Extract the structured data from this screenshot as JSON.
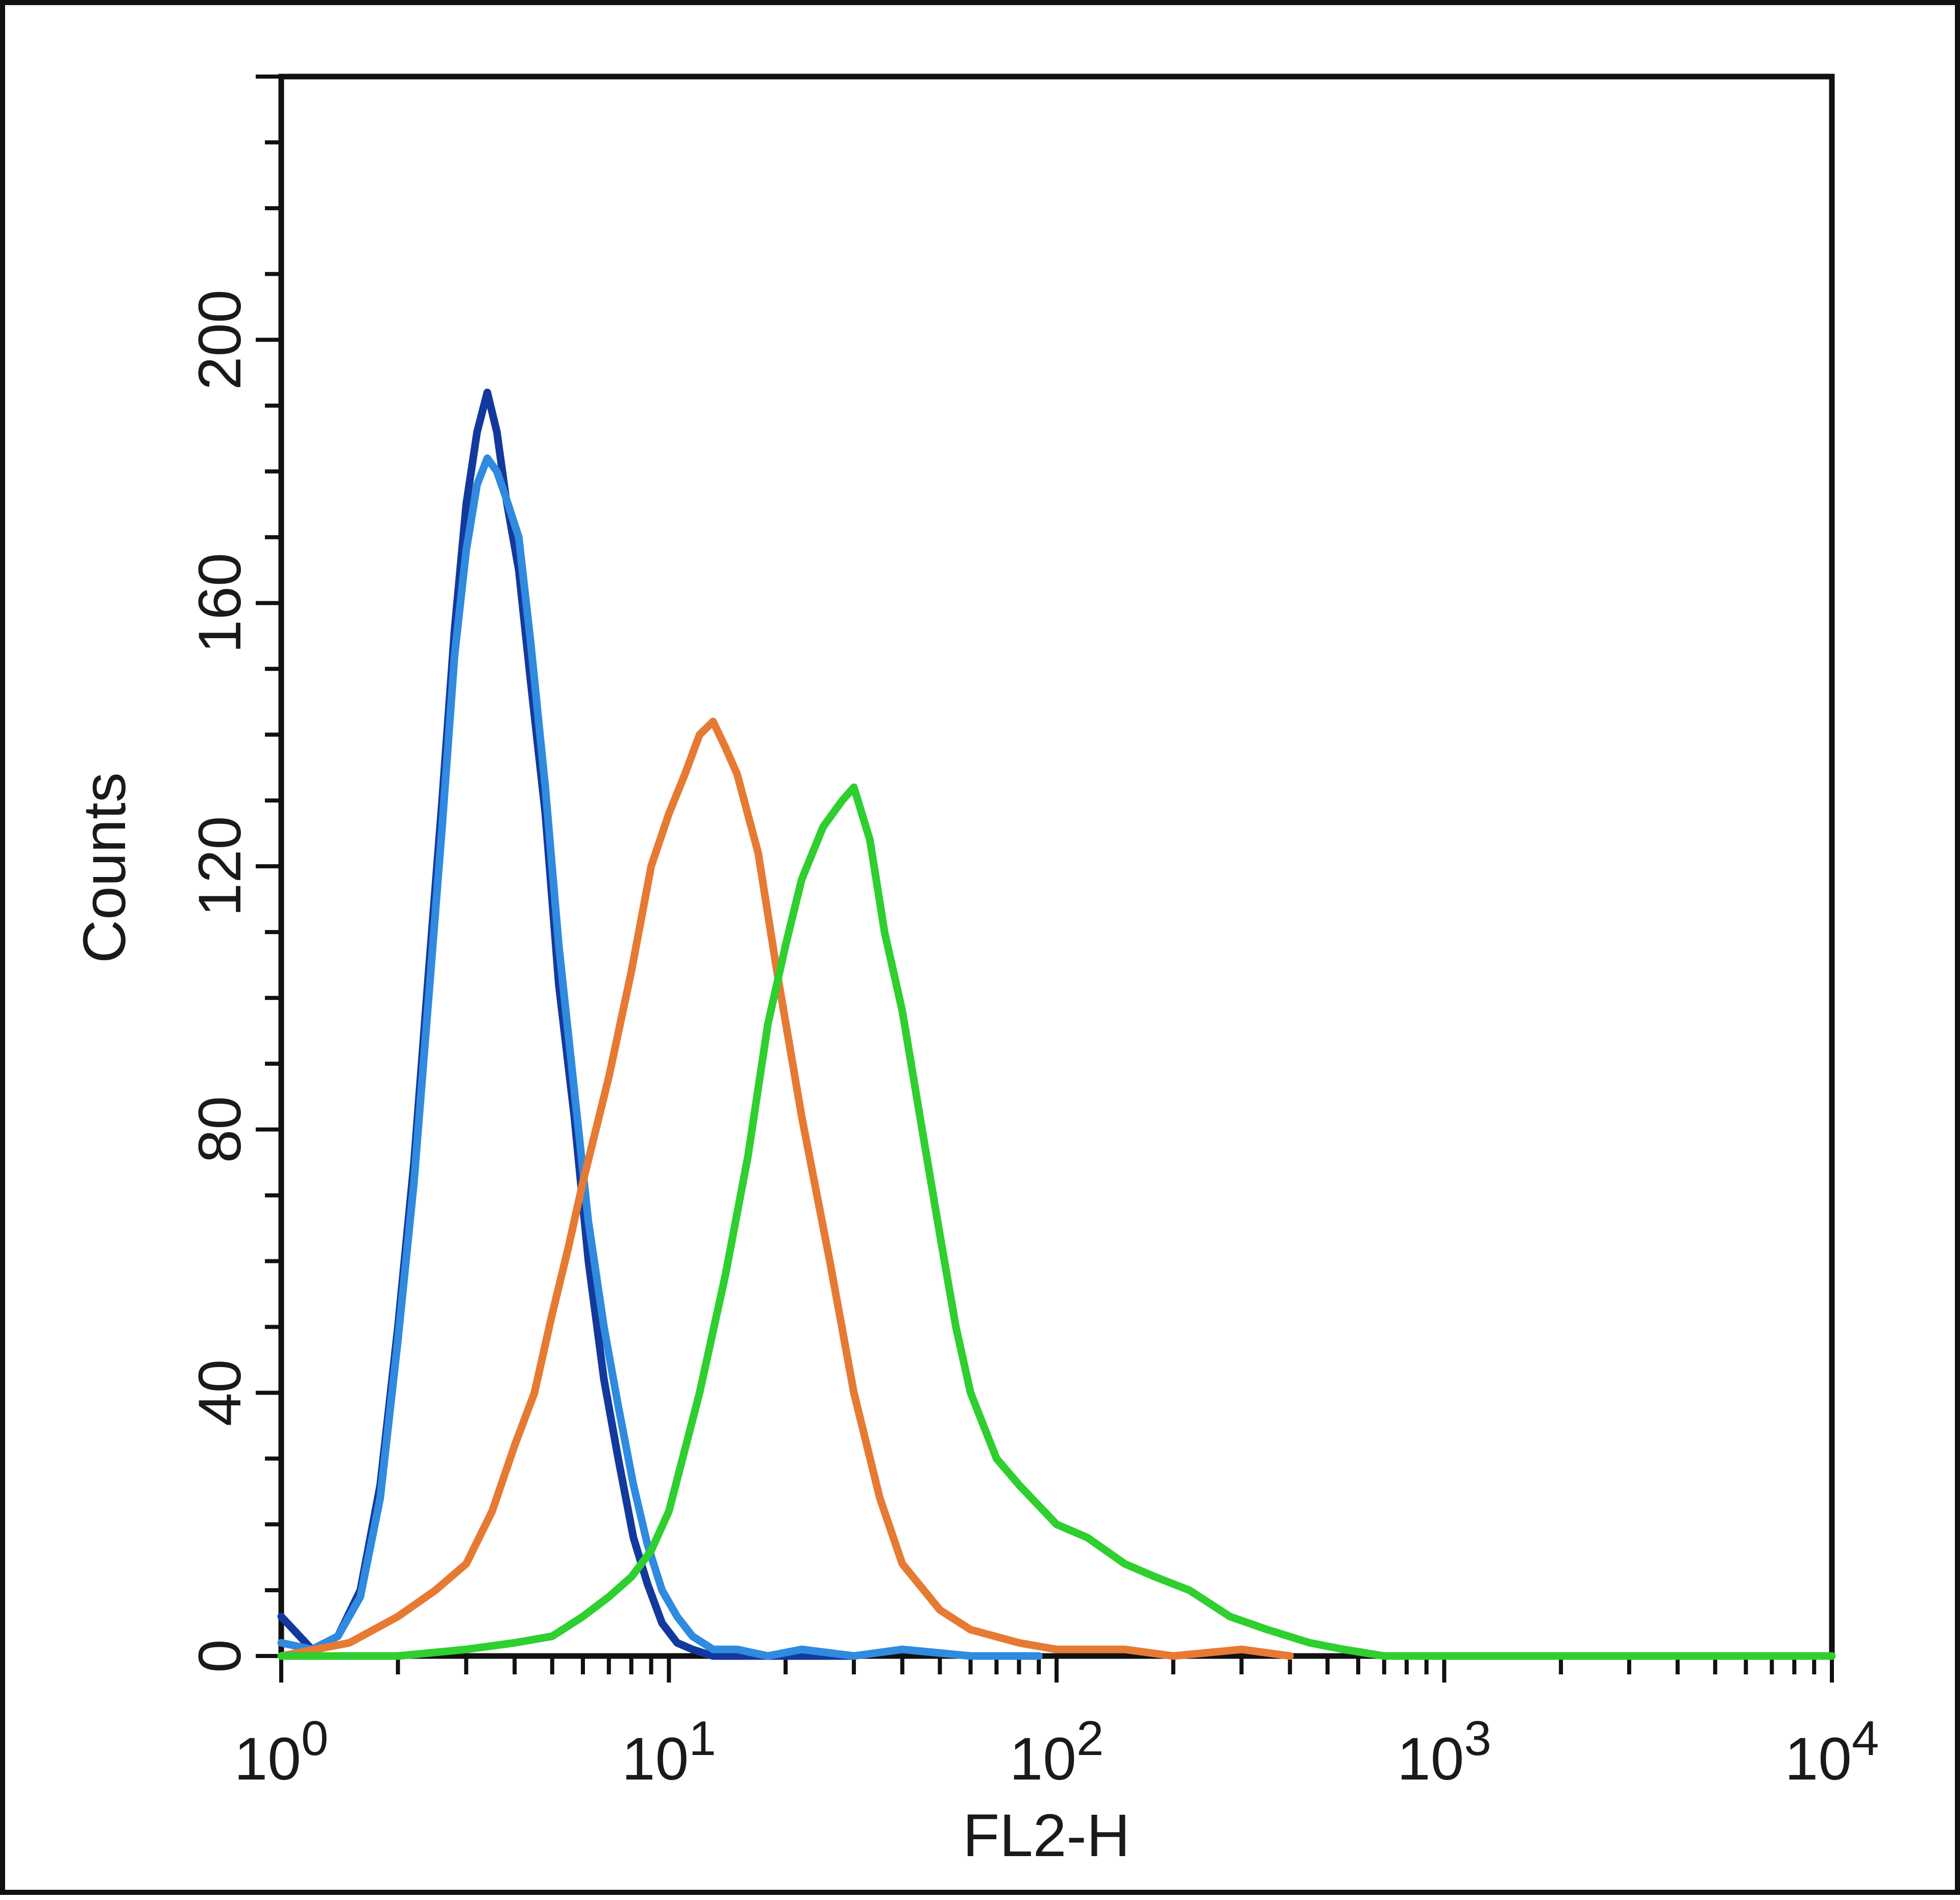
{
  "chart_data": {
    "type": "line",
    "xlabel": "FL2-H",
    "ylabel": "Counts",
    "xscale": "log",
    "xlim": [
      1,
      10000
    ],
    "ylim": [
      0,
      240
    ],
    "x_ticks": [
      {
        "value": 1,
        "base": "10",
        "exp": "0"
      },
      {
        "value": 10,
        "base": "10",
        "exp": "1"
      },
      {
        "value": 100,
        "base": "10",
        "exp": "2"
      },
      {
        "value": 1000,
        "base": "10",
        "exp": "3"
      },
      {
        "value": 10000,
        "base": "10",
        "exp": "4"
      }
    ],
    "y_ticks": [
      0,
      40,
      80,
      120,
      160,
      200
    ],
    "grid": false,
    "legend": "none",
    "series": [
      {
        "color": "#13399f",
        "x": [
          1.0,
          1.2,
          1.4,
          1.6,
          1.8,
          2.0,
          2.2,
          2.4,
          2.6,
          2.8,
          3.0,
          3.2,
          3.4,
          3.6,
          3.8,
          4.1,
          4.4,
          4.8,
          5.2,
          5.7,
          6.2,
          6.8,
          7.4,
          8.1,
          8.8,
          9.6,
          10.5,
          11.5,
          13,
          15,
          18,
          22,
          30
        ],
        "y": [
          6,
          1,
          3,
          10,
          26,
          50,
          75,
          104,
          130,
          156,
          175,
          186,
          192,
          186,
          176,
          165,
          148,
          128,
          102,
          82,
          60,
          42,
          30,
          18,
          11,
          5,
          2,
          1,
          0,
          0,
          0,
          0,
          0
        ]
      },
      {
        "color": "#2f8ae0",
        "x": [
          1.0,
          1.2,
          1.4,
          1.6,
          1.8,
          2.0,
          2.2,
          2.4,
          2.6,
          2.8,
          3.0,
          3.2,
          3.4,
          3.6,
          3.8,
          4.1,
          4.4,
          4.8,
          5.2,
          5.7,
          6.2,
          6.8,
          7.4,
          8.1,
          8.8,
          9.6,
          10.5,
          11.5,
          13,
          15,
          18,
          22,
          30,
          40,
          60,
          90
        ],
        "y": [
          2,
          1,
          3,
          9,
          24,
          48,
          72,
          100,
          126,
          152,
          168,
          178,
          182,
          180,
          176,
          170,
          154,
          132,
          108,
          86,
          66,
          50,
          38,
          26,
          17,
          10,
          6,
          3,
          1,
          1,
          0,
          1,
          0,
          1,
          0,
          0
        ]
      },
      {
        "color": "#e67a33",
        "x": [
          1.0,
          1.5,
          2.0,
          2.5,
          3.0,
          3.5,
          4.0,
          4.5,
          5.0,
          5.5,
          6.0,
          7.0,
          8.0,
          9.0,
          10.0,
          11.0,
          12.0,
          13.0,
          14.0,
          15.0,
          17.0,
          19.0,
          22.0,
          26.0,
          30.0,
          35.0,
          40.0,
          50.0,
          60.0,
          80.0,
          100.0,
          150.0,
          200.0,
          300.0,
          400.0
        ],
        "y": [
          0,
          2,
          6,
          10,
          14,
          22,
          32,
          40,
          52,
          62,
          72,
          88,
          104,
          120,
          128,
          134,
          140,
          142,
          138,
          134,
          122,
          104,
          82,
          60,
          40,
          24,
          14,
          7,
          4,
          2,
          1,
          1,
          0,
          1,
          0
        ]
      },
      {
        "color": "#2ecf2e",
        "x": [
          1.0,
          2.0,
          3.0,
          4.0,
          5.0,
          6.0,
          7.0,
          8.0,
          9.0,
          10.0,
          12.0,
          14.0,
          16.0,
          18.0,
          20.0,
          22.0,
          25.0,
          28.0,
          30.0,
          33.0,
          36.0,
          40.0,
          45.0,
          50.0,
          55.0,
          60.0,
          70.0,
          80.0,
          100.0,
          120.0,
          150.0,
          180.0,
          220.0,
          280.0,
          350.0,
          450.0,
          550.0,
          700.0,
          1000.0,
          10000.0
        ],
        "y": [
          0,
          0,
          1,
          2,
          3,
          6,
          9,
          12,
          16,
          22,
          40,
          58,
          76,
          96,
          108,
          118,
          126,
          130,
          132,
          124,
          110,
          98,
          80,
          64,
          50,
          40,
          30,
          26,
          20,
          18,
          14,
          12,
          10,
          6,
          4,
          2,
          1,
          0,
          0,
          0
        ]
      }
    ]
  }
}
